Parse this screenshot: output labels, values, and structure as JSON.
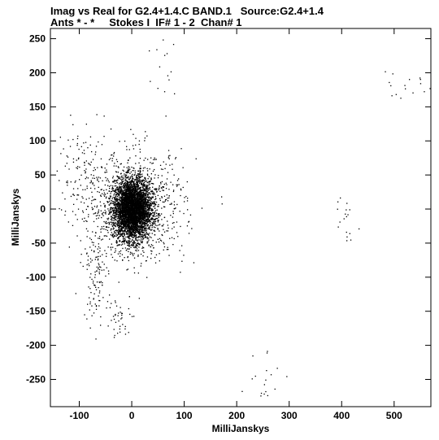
{
  "chart_data": {
    "type": "scatter",
    "title": "Imag vs Real for G2.4+1.4.C BAND.1   Source:G2.4+1.4",
    "subtitle": "Ants * - *     Stokes I  IF# 1 - 2  Chan# 1",
    "xlabel": "MilliJanskys",
    "ylabel": "MilliJanskys",
    "xlim": [
      -155,
      570
    ],
    "ylim": [
      -290,
      265
    ],
    "xticks": [
      -100,
      0,
      100,
      200,
      300,
      400,
      500
    ],
    "yticks": [
      -250,
      -200,
      -150,
      -100,
      -50,
      0,
      50,
      100,
      150,
      200,
      250
    ],
    "xtick_labels": [
      "-100",
      "0",
      "100",
      "200",
      "300",
      "400",
      "500"
    ],
    "ytick_labels": [
      "-250",
      "-200",
      "-150",
      "-100",
      "-50",
      "0",
      "50",
      "100",
      "150",
      "200",
      "250"
    ],
    "grid": false,
    "marker_color": "#000000",
    "series": [
      {
        "clusters": [
          {
            "center": [
              0,
              0
            ],
            "spread": [
              18,
              22
            ],
            "count": 4200
          },
          {
            "center": [
              10,
              5
            ],
            "spread": [
              45,
              40
            ],
            "count": 900
          },
          {
            "center": [
              -90,
              40
            ],
            "spread": [
              25,
              40
            ],
            "count": 140
          },
          {
            "center": [
              -70,
              -90
            ],
            "spread": [
              12,
              35
            ],
            "count": 120
          },
          {
            "center": [
              -25,
              -160
            ],
            "spread": [
              15,
              15
            ],
            "count": 40
          },
          {
            "center": [
              65,
              220
            ],
            "spread": [
              12,
              25
            ],
            "count": 14
          },
          {
            "center": [
              405,
              -5
            ],
            "spread": [
              10,
              20
            ],
            "count": 18
          },
          {
            "center": [
              515,
              180
            ],
            "spread": [
              20,
              25
            ],
            "count": 16
          },
          {
            "center": [
              245,
              -240
            ],
            "spread": [
              20,
              20
            ],
            "count": 18
          }
        ]
      }
    ]
  }
}
